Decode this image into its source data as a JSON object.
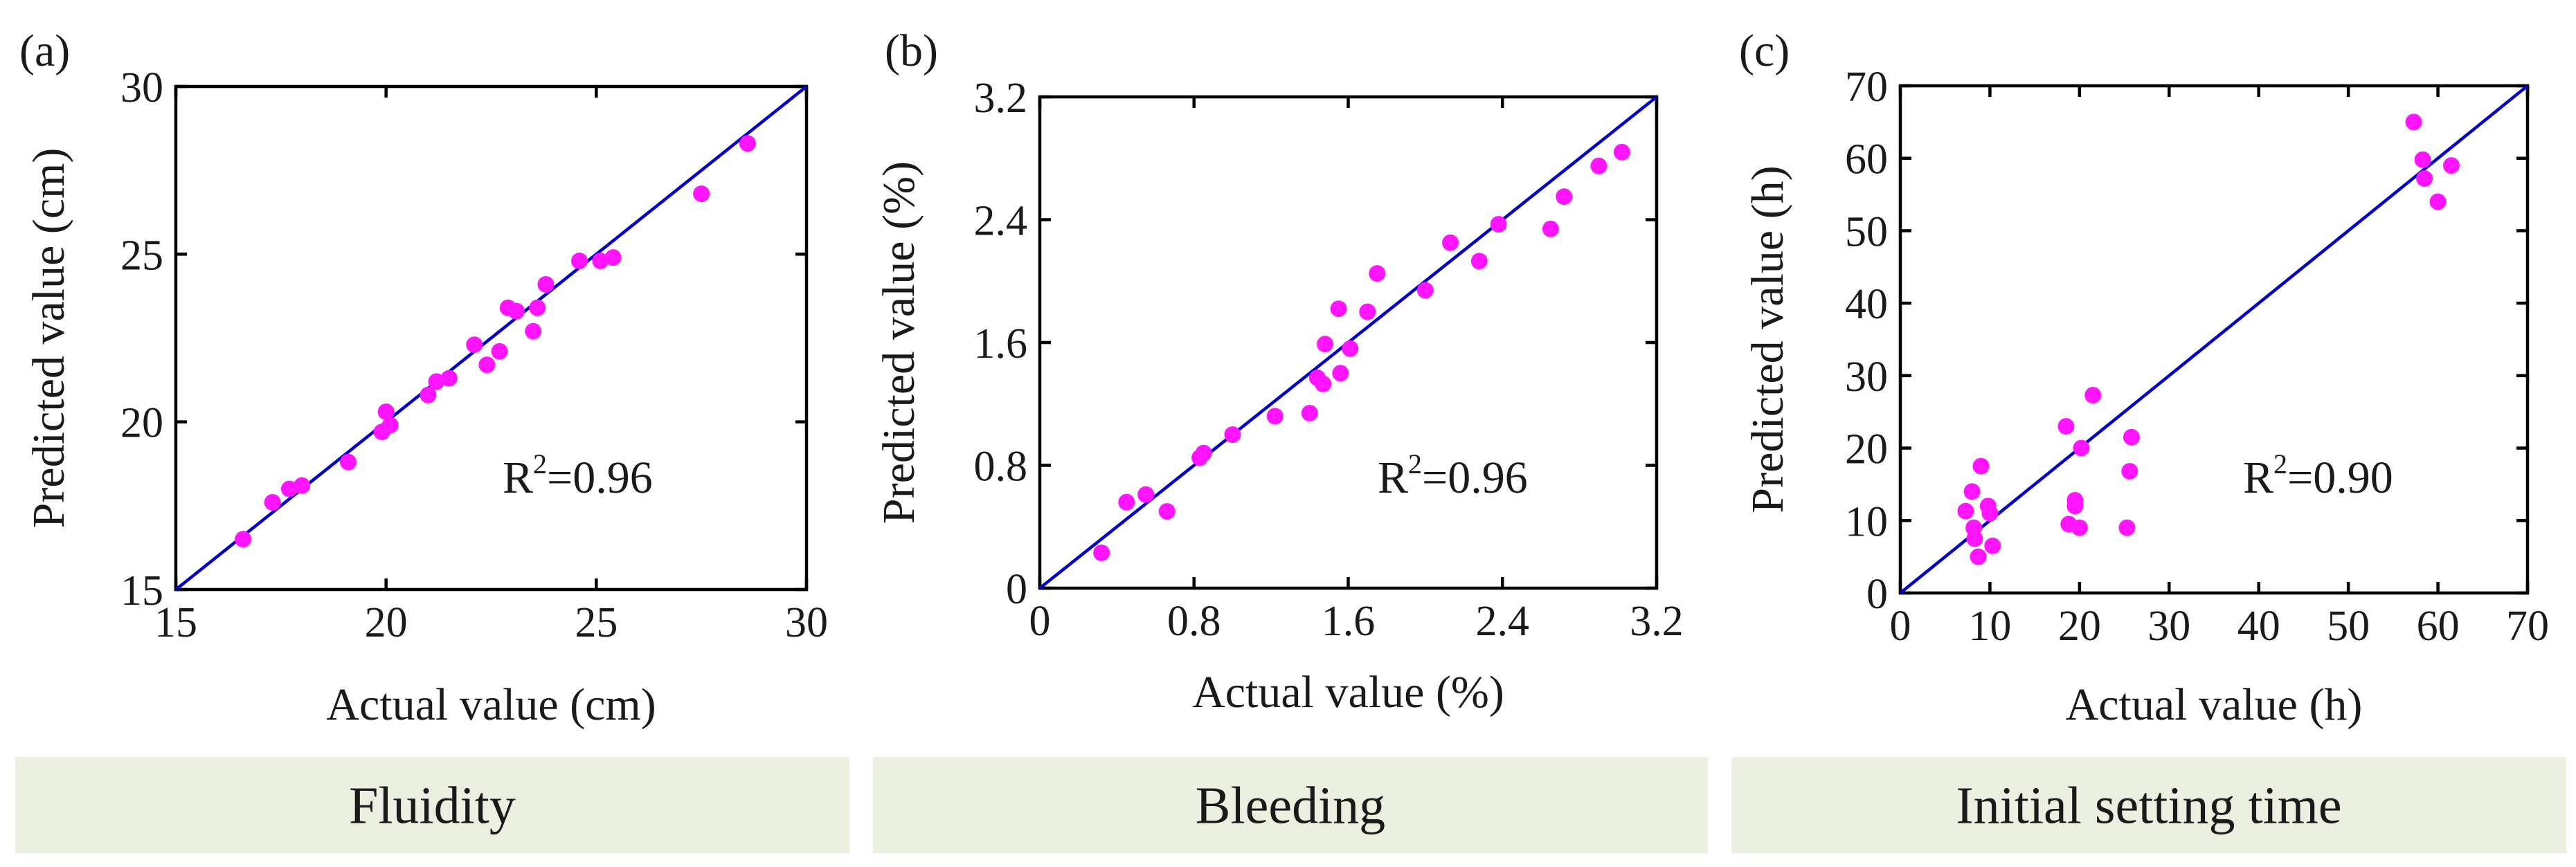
{
  "colors": {
    "points": "#ff14ff",
    "fit_line": "#0000c8",
    "banner": "#ebefe0"
  },
  "chart_data": [
    {
      "type": "scatter",
      "panel_label": "(a)",
      "xlabel": "Actual value (cm)",
      "ylabel": "Predicted value (cm)",
      "xlim": [
        15,
        30
      ],
      "ylim": [
        15,
        30
      ],
      "xticks": [
        "15",
        "20",
        "25",
        "30"
      ],
      "yticks": [
        "15",
        "20",
        "25",
        "30"
      ],
      "annotation": {
        "base": "R",
        "sup": "2",
        "value": "=0.96"
      },
      "banner": "Fluidity",
      "reference_line": [
        [
          15,
          15
        ],
        [
          30,
          30
        ]
      ],
      "points": [
        [
          16.6,
          16.5
        ],
        [
          17.3,
          17.6
        ],
        [
          17.7,
          18.0
        ],
        [
          18.0,
          18.1
        ],
        [
          19.1,
          18.8
        ],
        [
          19.9,
          19.7
        ],
        [
          20.1,
          19.9
        ],
        [
          20.0,
          20.3
        ],
        [
          21.0,
          20.8
        ],
        [
          21.2,
          21.2
        ],
        [
          21.5,
          21.3
        ],
        [
          22.1,
          22.3
        ],
        [
          22.4,
          21.7
        ],
        [
          22.7,
          22.1
        ],
        [
          22.9,
          23.4
        ],
        [
          23.1,
          23.3
        ],
        [
          23.5,
          22.7
        ],
        [
          23.6,
          23.4
        ],
        [
          23.8,
          24.1
        ],
        [
          24.6,
          24.8
        ],
        [
          25.1,
          24.8
        ],
        [
          25.4,
          24.9
        ],
        [
          27.5,
          26.8
        ],
        [
          28.6,
          28.3
        ]
      ]
    },
    {
      "type": "scatter",
      "panel_label": "(b)",
      "xlabel": "Actual value (%)",
      "ylabel": "Predicted value (%)",
      "xlim": [
        0,
        3.2
      ],
      "ylim": [
        0,
        3.2
      ],
      "xticks": [
        "0",
        "0.8",
        "1.6",
        "2.4",
        "3.2"
      ],
      "yticks": [
        "0",
        "0.8",
        "1.6",
        "2.4",
        "3.2"
      ],
      "annotation": {
        "base": "R",
        "sup": "2",
        "value": "=0.96"
      },
      "banner": "Bleeding",
      "reference_line": [
        [
          0,
          0
        ],
        [
          3.2,
          3.2
        ]
      ],
      "points": [
        [
          0.32,
          0.23
        ],
        [
          0.45,
          0.56
        ],
        [
          0.55,
          0.61
        ],
        [
          0.66,
          0.5
        ],
        [
          0.83,
          0.85
        ],
        [
          0.85,
          0.88
        ],
        [
          1.0,
          1.0
        ],
        [
          1.22,
          1.12
        ],
        [
          1.4,
          1.14
        ],
        [
          1.44,
          1.37
        ],
        [
          1.47,
          1.33
        ],
        [
          1.48,
          1.59
        ],
        [
          1.55,
          1.82
        ],
        [
          1.56,
          1.4
        ],
        [
          1.61,
          1.56
        ],
        [
          1.7,
          1.8
        ],
        [
          1.75,
          2.05
        ],
        [
          2.0,
          1.94
        ],
        [
          2.13,
          2.25
        ],
        [
          2.28,
          2.13
        ],
        [
          2.38,
          2.37
        ],
        [
          2.65,
          2.34
        ],
        [
          2.72,
          2.55
        ],
        [
          2.9,
          2.75
        ],
        [
          3.02,
          2.84
        ]
      ]
    },
    {
      "type": "scatter",
      "panel_label": "(c)",
      "xlabel": "Actual value (h)",
      "ylabel": "Predicted value (h)",
      "xlim": [
        0,
        70
      ],
      "ylim": [
        0,
        70
      ],
      "xticks": [
        "0",
        "10",
        "20",
        "30",
        "40",
        "50",
        "60",
        "70"
      ],
      "yticks": [
        "0",
        "10",
        "20",
        "30",
        "40",
        "50",
        "60",
        "70"
      ],
      "annotation": {
        "base": "R",
        "sup": "2",
        "value": "=0.90"
      },
      "banner": "Initial setting time",
      "reference_line": [
        [
          0,
          0
        ],
        [
          70,
          70
        ]
      ],
      "points": [
        [
          7.3,
          11.3
        ],
        [
          8.0,
          14.0
        ],
        [
          8.2,
          9.0
        ],
        [
          8.3,
          7.5
        ],
        [
          8.7,
          5.0
        ],
        [
          9.0,
          17.5
        ],
        [
          9.8,
          12.0
        ],
        [
          10.0,
          11.0
        ],
        [
          10.3,
          6.5
        ],
        [
          18.5,
          23.0
        ],
        [
          18.8,
          9.5
        ],
        [
          19.5,
          12.8
        ],
        [
          19.5,
          12.0
        ],
        [
          20.0,
          9.0
        ],
        [
          20.2,
          20.0
        ],
        [
          21.5,
          27.3
        ],
        [
          25.3,
          9.0
        ],
        [
          25.6,
          16.8
        ],
        [
          25.8,
          21.5
        ],
        [
          57.3,
          65.0
        ],
        [
          58.3,
          59.8
        ],
        [
          58.5,
          57.2
        ],
        [
          60.0,
          54.0
        ],
        [
          61.5,
          59.0
        ]
      ]
    }
  ]
}
